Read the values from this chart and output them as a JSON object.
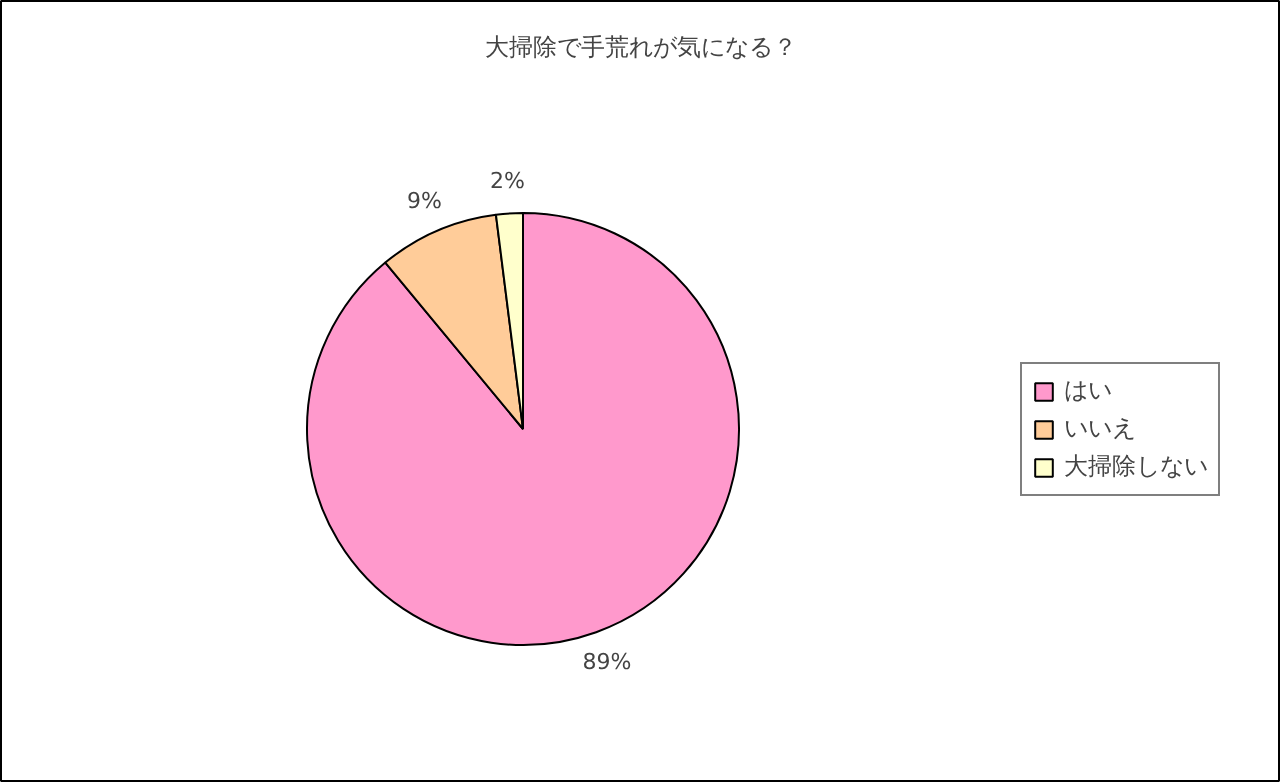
{
  "chart_data": {
    "type": "pie",
    "title": "大掃除で手荒れが気になる？",
    "categories": [
      "はい",
      "いいえ",
      "大掃除しない"
    ],
    "values": [
      89,
      9,
      2
    ],
    "value_labels": [
      "89%",
      "9%",
      "2%"
    ],
    "colors": [
      "#ff99cc",
      "#ffcc99",
      "#ffffcc"
    ],
    "legend": "right"
  }
}
